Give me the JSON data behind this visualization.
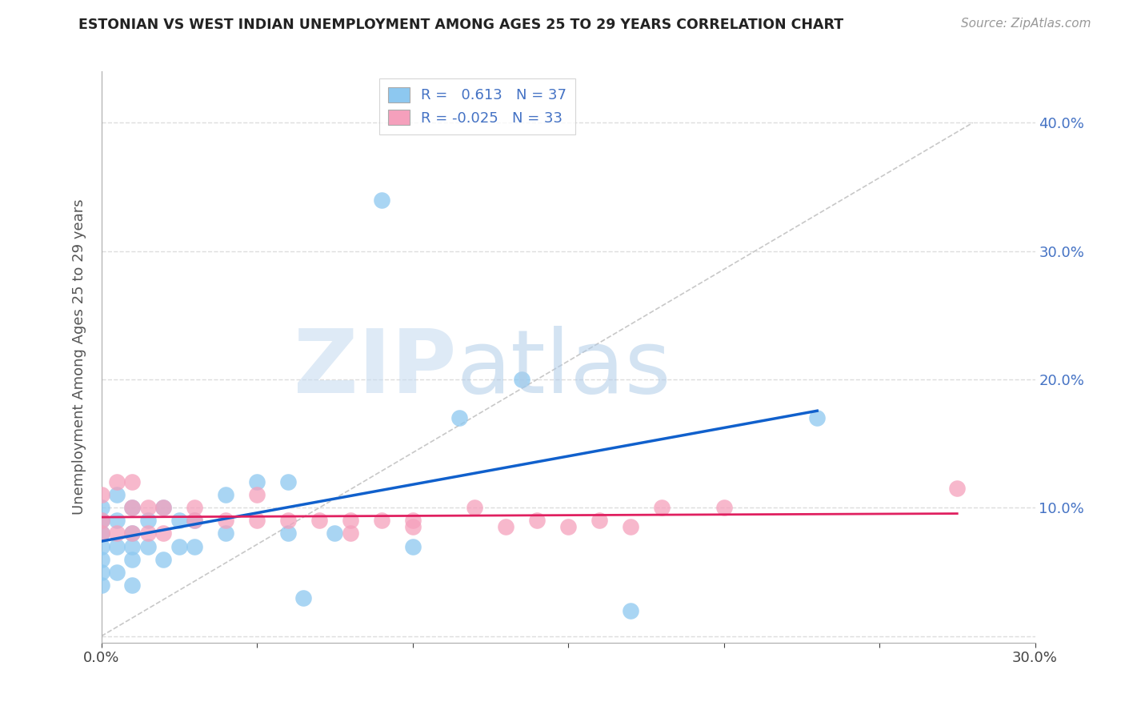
{
  "title": "ESTONIAN VS WEST INDIAN UNEMPLOYMENT AMONG AGES 25 TO 29 YEARS CORRELATION CHART",
  "source": "Source: ZipAtlas.com",
  "ylabel": "Unemployment Among Ages 25 to 29 years",
  "xlim": [
    0.0,
    0.3
  ],
  "ylim": [
    -0.005,
    0.44
  ],
  "xticks": [
    0.0,
    0.05,
    0.1,
    0.15,
    0.2,
    0.25,
    0.3
  ],
  "yticks": [
    0.0,
    0.1,
    0.2,
    0.3,
    0.4
  ],
  "xtick_labels": [
    "0.0%",
    "",
    "",
    "",
    "",
    "",
    "30.0%"
  ],
  "ytick_labels_right": [
    "",
    "10.0%",
    "20.0%",
    "30.0%",
    "40.0%"
  ],
  "legend_r_estonian": "0.613",
  "legend_n_estonian": "37",
  "legend_r_westindian": "-0.025",
  "legend_n_westindian": "33",
  "estonian_color": "#8DC8F0",
  "westindian_color": "#F5A0BC",
  "estonian_line_color": "#1060CC",
  "westindian_line_color": "#E02060",
  "background_color": "#FFFFFF",
  "grid_color": "#DDDDDD",
  "estonian_x": [
    0.0,
    0.0,
    0.0,
    0.0,
    0.0,
    0.0,
    0.0,
    0.005,
    0.005,
    0.005,
    0.005,
    0.01,
    0.01,
    0.01,
    0.01,
    0.01,
    0.015,
    0.015,
    0.02,
    0.02,
    0.025,
    0.025,
    0.03,
    0.03,
    0.04,
    0.04,
    0.05,
    0.06,
    0.06,
    0.065,
    0.075,
    0.09,
    0.1,
    0.115,
    0.135,
    0.17,
    0.23
  ],
  "estonian_y": [
    0.04,
    0.05,
    0.06,
    0.07,
    0.08,
    0.09,
    0.1,
    0.05,
    0.07,
    0.09,
    0.11,
    0.04,
    0.06,
    0.07,
    0.08,
    0.1,
    0.07,
    0.09,
    0.06,
    0.1,
    0.07,
    0.09,
    0.07,
    0.09,
    0.08,
    0.11,
    0.12,
    0.08,
    0.12,
    0.03,
    0.08,
    0.34,
    0.07,
    0.17,
    0.2,
    0.02,
    0.17
  ],
  "westindian_x": [
    0.0,
    0.0,
    0.0,
    0.005,
    0.005,
    0.01,
    0.01,
    0.01,
    0.015,
    0.015,
    0.02,
    0.02,
    0.03,
    0.03,
    0.04,
    0.05,
    0.05,
    0.06,
    0.07,
    0.08,
    0.08,
    0.09,
    0.1,
    0.12,
    0.14,
    0.16,
    0.18,
    0.2,
    0.1,
    0.13,
    0.15,
    0.17,
    0.275
  ],
  "westindian_y": [
    0.08,
    0.09,
    0.11,
    0.08,
    0.12,
    0.08,
    0.1,
    0.12,
    0.08,
    0.1,
    0.08,
    0.1,
    0.09,
    0.1,
    0.09,
    0.09,
    0.11,
    0.09,
    0.09,
    0.08,
    0.09,
    0.09,
    0.09,
    0.1,
    0.09,
    0.09,
    0.1,
    0.1,
    0.085,
    0.085,
    0.085,
    0.085,
    0.115
  ]
}
